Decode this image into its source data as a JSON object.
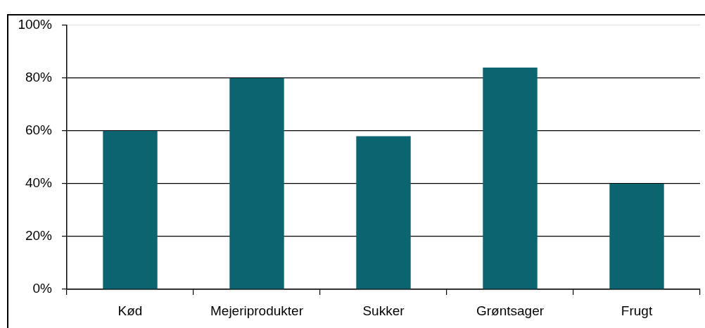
{
  "chart_data": {
    "type": "bar",
    "categories": [
      "Kød",
      "Mejeriprodukter",
      "Sukker",
      "Grøntsager",
      "Frugt"
    ],
    "values": [
      60,
      80,
      58,
      84,
      40
    ],
    "color": "#0b6470",
    "ylim": [
      0,
      100
    ],
    "yticks": [
      {
        "value": 0,
        "label": "0%"
      },
      {
        "value": 20,
        "label": "20%"
      },
      {
        "value": 40,
        "label": "40%"
      },
      {
        "value": 60,
        "label": "60%"
      },
      {
        "value": 80,
        "label": "80%"
      },
      {
        "value": 100,
        "label": "100%"
      }
    ],
    "grid": "y"
  }
}
